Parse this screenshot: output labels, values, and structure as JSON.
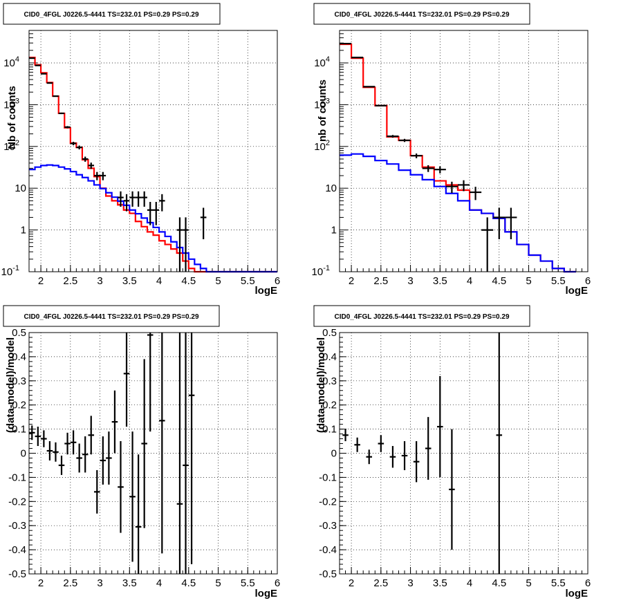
{
  "chart_data": [
    {
      "type": "line",
      "title": "CID0_4FGL J0226.5-4441 TS=232.01 PS=0.29 PS=0.29",
      "xlabel": "logE",
      "ylabel": "Nb of counts",
      "yscale": "log",
      "xlim": [
        1.8,
        6.0
      ],
      "ylim": [
        0.1,
        60000
      ],
      "xticks": [
        "2",
        "2.5",
        "3",
        "3.5",
        "4",
        "4.5",
        "5",
        "5.5",
        "6"
      ],
      "yticks": [
        "10^-1",
        "1",
        "10",
        "10^2",
        "10^3",
        "10^4"
      ],
      "grid": true,
      "step_edges": [
        1.8,
        1.9,
        2.0,
        2.1,
        2.2,
        2.3,
        2.4,
        2.5,
        2.6,
        2.7,
        2.8,
        2.9,
        3.0,
        3.1,
        3.2,
        3.3,
        3.4,
        3.5,
        3.6,
        3.7,
        3.8,
        3.9,
        4.0,
        4.1,
        4.2,
        4.3,
        4.4,
        4.5,
        4.6,
        4.7,
        4.8,
        4.9,
        5.0,
        5.1,
        5.2,
        5.3,
        5.4,
        5.5,
        5.6,
        5.7,
        5.8,
        5.9,
        6.0
      ],
      "series": [
        {
          "color": "#ff0000",
          "kind": "step",
          "values": [
            13500,
            9000,
            5800,
            3400,
            1600,
            620,
            280,
            120,
            95,
            48,
            30,
            19,
            10,
            6.5,
            5,
            4,
            3,
            2.5,
            1.6,
            1.2,
            0.9,
            0.75,
            0.55,
            0.45,
            0.35,
            0.28,
            0.18,
            0.12,
            0.1,
            0.1,
            0.1,
            0.1,
            0.1,
            0.1,
            0.1,
            0.1,
            0.1,
            0.1,
            0.1,
            0.1,
            0.1,
            0.1
          ]
        },
        {
          "color": "#0000ff",
          "kind": "step",
          "values": [
            28,
            32,
            35,
            36,
            35,
            32,
            29,
            25,
            21,
            18,
            15,
            12,
            9.8,
            7.8,
            6.1,
            4.9,
            3.9,
            3.0,
            2.45,
            1.93,
            1.5,
            1.15,
            0.9,
            0.7,
            0.52,
            0.38,
            0.28,
            0.2,
            0.15,
            0.12,
            0.1,
            0.1,
            0.1,
            0.1,
            0.1,
            0.1,
            0.1,
            0.1,
            0.1,
            0.1,
            0.1,
            0.1
          ]
        },
        {
          "color": "#000000",
          "kind": "points",
          "points": [
            {
              "x": 1.85,
              "y": 13000,
              "yerr_lo": 114,
              "yerr_hi": 114
            },
            {
              "x": 1.95,
              "y": 8700,
              "yerr_lo": 93,
              "yerr_hi": 93
            },
            {
              "x": 2.05,
              "y": 5500,
              "yerr_lo": 74,
              "yerr_hi": 74
            },
            {
              "x": 2.15,
              "y": 3300,
              "yerr_lo": 57,
              "yerr_hi": 57
            },
            {
              "x": 2.25,
              "y": 1600,
              "yerr_lo": 40,
              "yerr_hi": 40
            },
            {
              "x": 2.35,
              "y": 620,
              "yerr_lo": 25,
              "yerr_hi": 25
            },
            {
              "x": 2.45,
              "y": 290,
              "yerr_lo": 17,
              "yerr_hi": 17
            },
            {
              "x": 2.55,
              "y": 118,
              "yerr_lo": 11,
              "yerr_hi": 11
            },
            {
              "x": 2.65,
              "y": 95,
              "yerr_lo": 10,
              "yerr_hi": 10
            },
            {
              "x": 2.75,
              "y": 50,
              "yerr_lo": 7,
              "yerr_hi": 7
            },
            {
              "x": 2.85,
              "y": 35,
              "yerr_lo": 6,
              "yerr_hi": 6
            },
            {
              "x": 2.95,
              "y": 20,
              "yerr_lo": 4.5,
              "yerr_hi": 4.5
            },
            {
              "x": 3.05,
              "y": 20,
              "yerr_lo": 4.5,
              "yerr_hi": 4.5
            },
            {
              "x": 3.35,
              "y": 6,
              "yerr_lo": 2.4,
              "yerr_hi": 2.4
            },
            {
              "x": 3.45,
              "y": 5,
              "yerr_lo": 2.2,
              "yerr_hi": 2.2
            },
            {
              "x": 3.55,
              "y": 6,
              "yerr_lo": 2.4,
              "yerr_hi": 2.4
            },
            {
              "x": 3.65,
              "y": 6,
              "yerr_lo": 2.4,
              "yerr_hi": 2.4
            },
            {
              "x": 3.75,
              "y": 6,
              "yerr_lo": 2.4,
              "yerr_hi": 2.4
            },
            {
              "x": 3.85,
              "y": 3,
              "yerr_lo": 1.7,
              "yerr_hi": 1.7
            },
            {
              "x": 3.95,
              "y": 3,
              "yerr_lo": 1.7,
              "yerr_hi": 1.7
            },
            {
              "x": 4.05,
              "y": 5,
              "yerr_lo": 2.2,
              "yerr_hi": 2.2
            },
            {
              "x": 4.35,
              "y": 1,
              "yerr_lo": 1,
              "yerr_hi": 1
            },
            {
              "x": 4.45,
              "y": 1,
              "yerr_lo": 1,
              "yerr_hi": 1
            },
            {
              "x": 4.75,
              "y": 2,
              "yerr_lo": 1.4,
              "yerr_hi": 1.4
            }
          ]
        }
      ]
    },
    {
      "type": "line",
      "title": "CID0_4FGL J0226.5-4441 TS=232.01 PS=0.29 PS=0.29",
      "xlabel": "logE",
      "ylabel": "nb of counts",
      "yscale": "log",
      "xlim": [
        1.8,
        6.0
      ],
      "ylim": [
        0.1,
        60000
      ],
      "xticks": [
        "2",
        "2.5",
        "3",
        "3.5",
        "4",
        "4.5",
        "5",
        "5.5",
        "6"
      ],
      "yticks": [
        "10^-1",
        "1",
        "10",
        "10^2",
        "10^3",
        "10^4"
      ],
      "grid": true,
      "step_edges": [
        1.8,
        2.0,
        2.2,
        2.4,
        2.6,
        2.8,
        3.0,
        3.2,
        3.4,
        3.6,
        3.8,
        4.0,
        4.2,
        4.4,
        4.6,
        4.8,
        5.0,
        5.2,
        5.4,
        5.6,
        5.8,
        6.0
      ],
      "series": [
        {
          "color": "#ff0000",
          "kind": "step",
          "values": [
            28000,
            13000,
            2600,
            950,
            170,
            140,
            60,
            32,
            15,
            12,
            9,
            3,
            2.5,
            1.9,
            0.9,
            0.45,
            0.25,
            0.18,
            0.12,
            0.1
          ]
        },
        {
          "color": "#0000ff",
          "kind": "step",
          "values": [
            62,
            66,
            58,
            46,
            38,
            27,
            21,
            16,
            11,
            7.5,
            5,
            3,
            2.5,
            1.9,
            0.9,
            0.45,
            0.25,
            0.18,
            0.12,
            0.1
          ]
        },
        {
          "color": "#000000",
          "kind": "points",
          "points": [
            {
              "x": 1.9,
              "y": 29000,
              "yerr_lo": 170,
              "yerr_hi": 170
            },
            {
              "x": 2.1,
              "y": 13500,
              "yerr_lo": 116,
              "yerr_hi": 116
            },
            {
              "x": 2.3,
              "y": 2700,
              "yerr_lo": 52,
              "yerr_hi": 52
            },
            {
              "x": 2.5,
              "y": 950,
              "yerr_lo": 31,
              "yerr_hi": 31
            },
            {
              "x": 2.7,
              "y": 175,
              "yerr_lo": 13,
              "yerr_hi": 13
            },
            {
              "x": 2.9,
              "y": 140,
              "yerr_lo": 12,
              "yerr_hi": 12
            },
            {
              "x": 3.1,
              "y": 60,
              "yerr_lo": 7.7,
              "yerr_hi": 7.7
            },
            {
              "x": 3.3,
              "y": 30,
              "yerr_lo": 5.5,
              "yerr_hi": 5.5
            },
            {
              "x": 3.5,
              "y": 28,
              "yerr_lo": 5.3,
              "yerr_hi": 5.3
            },
            {
              "x": 3.7,
              "y": 11,
              "yerr_lo": 3.3,
              "yerr_hi": 3.3
            },
            {
              "x": 3.9,
              "y": 12,
              "yerr_lo": 3.5,
              "yerr_hi": 3.5
            },
            {
              "x": 4.1,
              "y": 8,
              "yerr_lo": 2.8,
              "yerr_hi": 2.8
            },
            {
              "x": 4.3,
              "y": 1,
              "yerr_lo": 1,
              "yerr_hi": 1
            },
            {
              "x": 4.5,
              "y": 2,
              "yerr_lo": 1.4,
              "yerr_hi": 1.4
            },
            {
              "x": 4.7,
              "y": 2,
              "yerr_lo": 1.4,
              "yerr_hi": 1.4
            }
          ]
        }
      ]
    },
    {
      "type": "scatter",
      "title": "CID0_4FGL J0226.5-4441 TS=232.01 PS=0.29 PS=0.29",
      "xlabel": "logE",
      "ylabel": "(data-model)/model",
      "xlim": [
        1.8,
        6.0
      ],
      "ylim": [
        -0.5,
        0.5
      ],
      "xticks": [
        "2",
        "2.5",
        "3",
        "3.5",
        "4",
        "4.5",
        "5",
        "5.5",
        "6"
      ],
      "yticks": [
        "-0.5",
        "-0.4",
        "-0.3",
        "-0.2",
        "-0.1",
        "0",
        "0.1",
        "0.2",
        "0.3",
        "0.4",
        "0.5"
      ],
      "grid": true,
      "series": [
        {
          "color": "#000000",
          "kind": "points",
          "points": [
            {
              "x": 1.85,
              "y": 0.085,
              "yerr": 0.03
            },
            {
              "x": 1.95,
              "y": 0.07,
              "yerr": 0.04
            },
            {
              "x": 2.05,
              "y": 0.06,
              "yerr": 0.035
            },
            {
              "x": 2.15,
              "y": 0.01,
              "yerr": 0.04
            },
            {
              "x": 2.25,
              "y": 0.005,
              "yerr": 0.04
            },
            {
              "x": 2.35,
              "y": -0.05,
              "yerr": 0.04
            },
            {
              "x": 2.45,
              "y": 0.04,
              "yerr": 0.045
            },
            {
              "x": 2.55,
              "y": 0.045,
              "yerr": 0.05
            },
            {
              "x": 2.65,
              "y": -0.02,
              "yerr": 0.06
            },
            {
              "x": 2.75,
              "y": -0.005,
              "yerr": 0.075
            },
            {
              "x": 2.85,
              "y": 0.075,
              "yerr": 0.08
            },
            {
              "x": 2.95,
              "y": -0.16,
              "yerr": 0.09
            },
            {
              "x": 3.05,
              "y": -0.03,
              "yerr": 0.1
            },
            {
              "x": 3.15,
              "y": -0.02,
              "yerr": 0.11
            },
            {
              "x": 3.25,
              "y": 0.13,
              "yerr": 0.13
            },
            {
              "x": 3.35,
              "y": -0.14,
              "yerr": 0.19
            },
            {
              "x": 3.45,
              "y": 0.33,
              "yerr": 0.22
            },
            {
              "x": 3.55,
              "y": -0.18,
              "yerr": 0.27
            },
            {
              "x": 3.65,
              "y": -0.305,
              "yerr": 0.3
            },
            {
              "x": 3.75,
              "y": 0.04,
              "yerr": 0.35
            },
            {
              "x": 3.85,
              "y": 0.49,
              "yerr": 0.4
            },
            {
              "x": 4.05,
              "y": 0.135,
              "yerr": 0.55
            },
            {
              "x": 4.35,
              "y": -0.21,
              "yerr": 0.8
            },
            {
              "x": 4.45,
              "y": -0.05,
              "yerr": 0.95
            },
            {
              "x": 4.55,
              "y": 0.24,
              "yerr": 0.7
            }
          ]
        }
      ]
    },
    {
      "type": "scatter",
      "title": "CID0_4FGL J0226.5-4441 TS=232.01 PS=0.29 PS=0.29",
      "xlabel": "logE",
      "ylabel": "(data-model)/model",
      "xlim": [
        1.8,
        6.0
      ],
      "ylim": [
        -0.5,
        0.5
      ],
      "xticks": [
        "2",
        "2.5",
        "3",
        "3.5",
        "4",
        "4.5",
        "5",
        "5.5",
        "6"
      ],
      "yticks": [
        "-0.5",
        "-0.4",
        "-0.3",
        "-0.2",
        "-0.1",
        "0",
        "0.1",
        "0.2",
        "0.3",
        "0.4",
        "0.5"
      ],
      "grid": true,
      "series": [
        {
          "color": "#000000",
          "kind": "points",
          "points": [
            {
              "x": 1.9,
              "y": 0.075,
              "yerr": 0.025
            },
            {
              "x": 2.1,
              "y": 0.035,
              "yerr": 0.03
            },
            {
              "x": 2.3,
              "y": -0.015,
              "yerr": 0.03
            },
            {
              "x": 2.5,
              "y": 0.04,
              "yerr": 0.035
            },
            {
              "x": 2.7,
              "y": -0.015,
              "yerr": 0.045
            },
            {
              "x": 2.9,
              "y": -0.01,
              "yerr": 0.06
            },
            {
              "x": 3.1,
              "y": -0.035,
              "yerr": 0.085
            },
            {
              "x": 3.3,
              "y": 0.02,
              "yerr": 0.13
            },
            {
              "x": 3.5,
              "y": 0.11,
              "yerr": 0.21
            },
            {
              "x": 3.7,
              "y": -0.15,
              "yerr": 0.25
            },
            {
              "x": 4.5,
              "y": 0.075,
              "yerr": 0.95
            }
          ]
        }
      ]
    }
  ]
}
